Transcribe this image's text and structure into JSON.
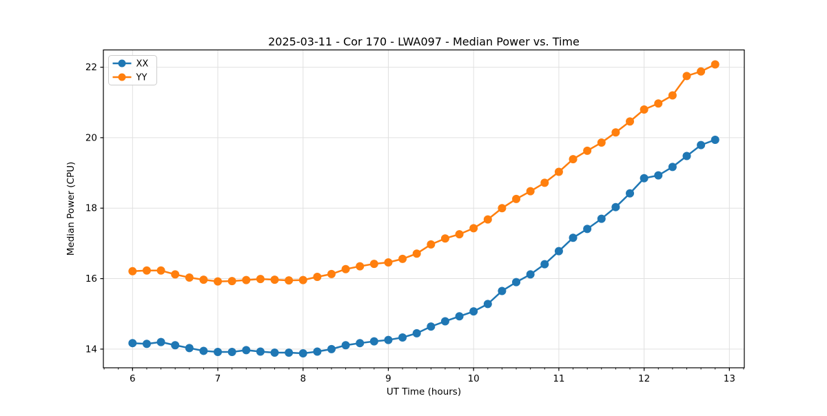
{
  "chart_data": {
    "type": "line",
    "title": "2025-03-11 - Cor 170 - LWA097 - Median Power vs. Time",
    "xlabel": "UT Time (hours)",
    "ylabel": "Median Power (CPU)",
    "xlim": [
      5.658,
      13.175
    ],
    "ylim": [
      13.47,
      22.49
    ],
    "x_ticks": [
      6,
      7,
      8,
      9,
      10,
      11,
      12,
      13
    ],
    "y_ticks": [
      14,
      16,
      18,
      20,
      22
    ],
    "x_minor_tick_step": 0.166667,
    "grid": true,
    "legend_position": "upper left",
    "x": [
      6.0,
      6.1667,
      6.3333,
      6.5,
      6.6667,
      6.8333,
      7.0,
      7.1667,
      7.3333,
      7.5,
      7.6667,
      7.8333,
      8.0,
      8.1667,
      8.3333,
      8.5,
      8.6667,
      8.8333,
      9.0,
      9.1667,
      9.3333,
      9.5,
      9.6667,
      9.8333,
      10.0,
      10.1667,
      10.3333,
      10.5,
      10.6667,
      10.8333,
      11.0,
      11.1667,
      11.3333,
      11.5,
      11.6667,
      11.8333,
      12.0,
      12.1667,
      12.3333,
      12.5,
      12.6667,
      12.8333
    ],
    "series": [
      {
        "name": "XX",
        "color": "#1f77b4",
        "values": [
          14.17,
          14.15,
          14.2,
          14.11,
          14.03,
          13.95,
          13.92,
          13.92,
          13.97,
          13.93,
          13.9,
          13.9,
          13.88,
          13.93,
          14.0,
          14.11,
          14.17,
          14.22,
          14.26,
          14.33,
          14.45,
          14.64,
          14.79,
          14.93,
          15.07,
          15.28,
          15.65,
          15.9,
          16.12,
          16.41,
          16.78,
          17.16,
          17.41,
          17.7,
          18.03,
          18.42,
          18.85,
          18.93,
          19.17,
          19.48,
          19.79,
          19.94
        ]
      },
      {
        "name": "YY",
        "color": "#ff7f0e",
        "values": [
          16.21,
          16.23,
          16.23,
          16.12,
          16.03,
          15.97,
          15.92,
          15.93,
          15.96,
          15.99,
          15.97,
          15.95,
          15.96,
          16.05,
          16.13,
          16.27,
          16.35,
          16.42,
          16.46,
          16.56,
          16.71,
          16.97,
          17.14,
          17.26,
          17.43,
          17.68,
          18.0,
          18.26,
          18.48,
          18.72,
          19.03,
          19.39,
          19.63,
          19.86,
          20.15,
          20.46,
          20.8,
          20.97,
          21.2,
          21.75,
          21.88,
          22.08
        ]
      }
    ]
  }
}
